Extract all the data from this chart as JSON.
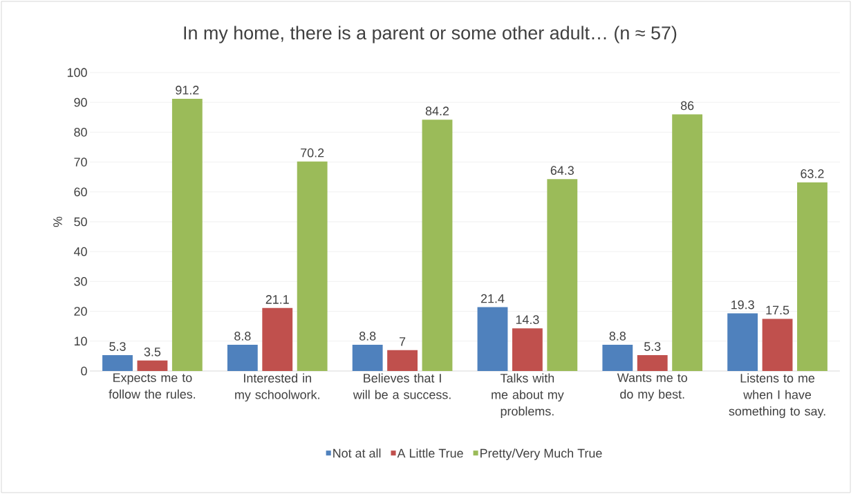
{
  "chart_data": {
    "type": "bar",
    "title": "In my home, there is a parent or some other adult… (n ≈ 57)",
    "ylabel": "%",
    "categories": [
      "Expects me to follow the rules.",
      "Interested in my schoolwork.",
      "Believes that I will be a success.",
      "Talks with me about my problems.",
      "Wants me to do my best.",
      "Listens to me when I have something to say."
    ],
    "series": [
      {
        "name": "Not at all",
        "color": "#4f81bd",
        "values": [
          5.3,
          8.8,
          8.8,
          21.4,
          8.8,
          19.3
        ]
      },
      {
        "name": "A Little True",
        "color": "#c0504d",
        "values": [
          3.5,
          21.1,
          7,
          14.3,
          5.3,
          17.5
        ]
      },
      {
        "name": "Pretty/Very Much True",
        "color": "#9bbb59",
        "values": [
          91.2,
          70.2,
          84.2,
          64.3,
          86,
          63.2
        ]
      }
    ],
    "ylim": [
      0,
      100
    ],
    "yticks": [
      0,
      10,
      20,
      30,
      40,
      50,
      60,
      70,
      80,
      90,
      100
    ],
    "grid": "y",
    "legend": "bottom",
    "data_labels": true
  }
}
